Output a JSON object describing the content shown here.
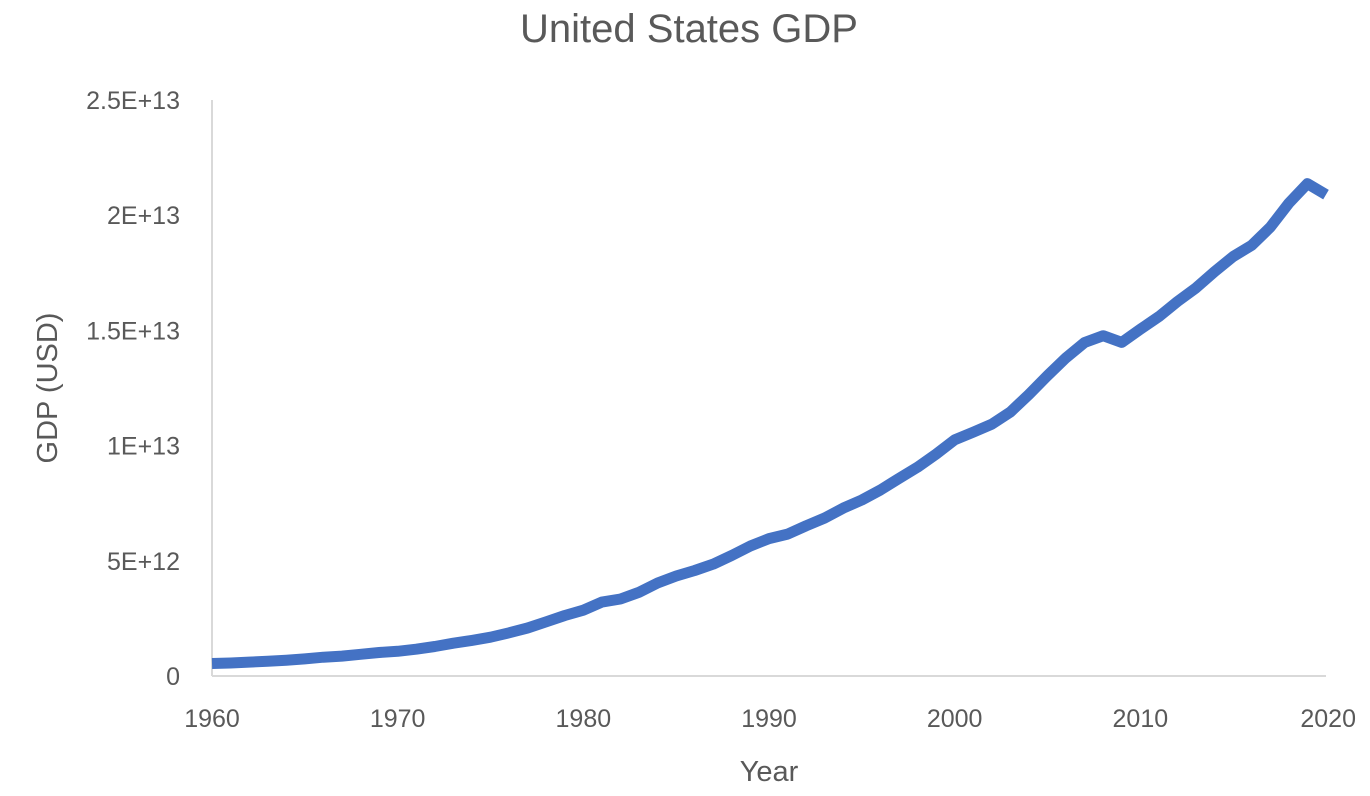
{
  "chart_data": {
    "type": "line",
    "title": "United States GDP",
    "xlabel": "Year",
    "ylabel": "GDP (USD)",
    "xlim": [
      1960,
      2020
    ],
    "ylim": [
      0,
      25000000000000
    ],
    "x_ticks": [
      1960,
      1970,
      1980,
      1990,
      2000,
      2010,
      2020
    ],
    "x_tick_labels": [
      "1960",
      "1970",
      "1980",
      "1990",
      "2000",
      "2010",
      "2020"
    ],
    "y_ticks": [
      0,
      5000000000000,
      10000000000000,
      15000000000000,
      20000000000000,
      25000000000000
    ],
    "y_tick_labels": [
      "0",
      "5E+12",
      "1E+13",
      "1.5E+13",
      "2E+13",
      "2.5E+13"
    ],
    "grid": false,
    "series_color": "#4472C4",
    "x": [
      1960,
      1961,
      1962,
      1963,
      1964,
      1965,
      1966,
      1967,
      1968,
      1969,
      1970,
      1971,
      1972,
      1973,
      1974,
      1975,
      1976,
      1977,
      1978,
      1979,
      1980,
      1981,
      1982,
      1983,
      1984,
      1985,
      1986,
      1987,
      1988,
      1989,
      1990,
      1991,
      1992,
      1993,
      1994,
      1995,
      1996,
      1997,
      1998,
      1999,
      2000,
      2001,
      2002,
      2003,
      2004,
      2005,
      2006,
      2007,
      2008,
      2009,
      2010,
      2011,
      2012,
      2013,
      2014,
      2015,
      2016,
      2017,
      2018,
      2019,
      2020
    ],
    "series": [
      {
        "values": [
          543300000000,
          563300000000,
          605100000000,
          638600000000,
          685800000000,
          743700000000,
          815000000000,
          861700000000,
          942500000000,
          1019900000000,
          1073300000000,
          1164900000000,
          1279100000000,
          1425400000000,
          1545200000000,
          1684900000000,
          1873400000000,
          2081800000000,
          2351600000000,
          2627300000000,
          2857300000000,
          3207000000000,
          3343800000000,
          3634000000000,
          4037600000000,
          4338980000000,
          4579630000000,
          4855220000000,
          5236440000000,
          5641580000000,
          5963140000000,
          6158130000000,
          6520330000000,
          6858560000000,
          7287240000000,
          7639750000000,
          8073120000000,
          8577550000000,
          9062820000000,
          9631170000000,
          10250950000000,
          10581930000000,
          10929110000000,
          11456450000000,
          12217200000000,
          13039200000000,
          13815600000000,
          14474200000000,
          14769900000000,
          14478100000000,
          15049000000000,
          15599700000000,
          16254000000000,
          16843200000000,
          17550700000000,
          18206000000000,
          18695100000000,
          19479600000000,
          20527200000000,
          21372600000000,
          20893700000000
        ]
      }
    ]
  }
}
